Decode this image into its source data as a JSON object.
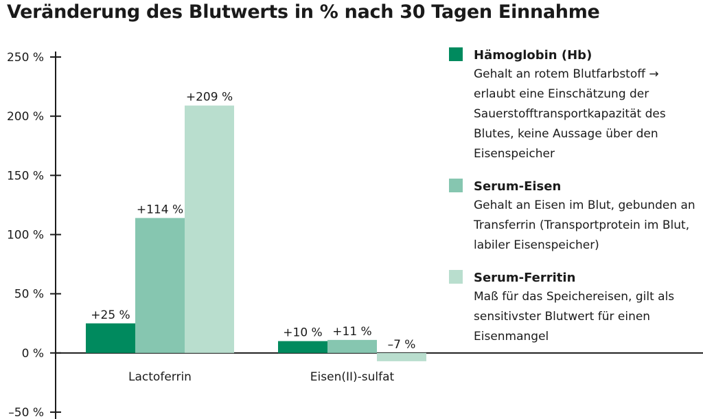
{
  "chart_data": {
    "type": "bar",
    "title": "Veränderung des Blutwerts in % nach 30 Tagen Einnahme",
    "categories": [
      "Lactoferrin",
      "Eisen(II)-sulfat"
    ],
    "series": [
      {
        "name": "Hämoglobin (Hb)",
        "values": [
          25,
          10
        ],
        "labels": [
          "+25 %",
          "+10 %"
        ],
        "color": "#008a5e"
      },
      {
        "name": "Serum-Eisen",
        "values": [
          114,
          11
        ],
        "labels": [
          "+114 %",
          "+11 %"
        ],
        "color": "#86c6b0"
      },
      {
        "name": "Serum-Ferritin",
        "values": [
          209,
          -7
        ],
        "labels": [
          "+209 %",
          "–7 %"
        ],
        "color": "#b9dece"
      }
    ],
    "yticks": [
      250,
      200,
      150,
      100,
      50,
      0,
      -50
    ],
    "ytick_labels": [
      "250 %",
      "200 %",
      "150 %",
      "100 %",
      "50 %",
      "0 %",
      "–50 %"
    ],
    "ylim": [
      -50,
      250
    ],
    "grid": false,
    "legend_position": "right"
  },
  "legend": [
    {
      "name": "Hämoglobin (Hb)",
      "color": "#008a5e",
      "description": "Gehalt an rotem Blutfarbstoff → erlaubt eine Einschätzung der Sauerstofftransportkapazität des Blutes, keine Aussage über den Eisenspeicher"
    },
    {
      "name": "Serum-Eisen",
      "color": "#86c6b0",
      "description": "Gehalt an Eisen im Blut, gebunden an Transferrin (Transportprotein im Blut, labiler Eisenspeicher)"
    },
    {
      "name": "Serum-Ferritin",
      "color": "#b9dece",
      "description": "Maß für das Speichereisen, gilt als sensitivster Blutwert für einen Eisenmangel"
    }
  ]
}
